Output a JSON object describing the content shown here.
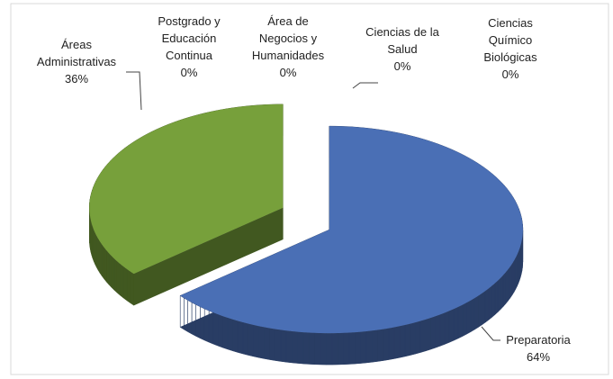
{
  "chart_data": {
    "type": "pie",
    "categories": [
      "Preparatoria",
      "Áreas Administrativas",
      "Postgrado y Educación Continua",
      "Área de Negocios y Humanidades",
      "Ciencias de la Salud",
      "Ciencias Químico Biológicas"
    ],
    "values": [
      64,
      36,
      0,
      0,
      0,
      0
    ],
    "value_labels": [
      "64%",
      "36%",
      "0%",
      "0%",
      "0%",
      "0%"
    ],
    "colors": [
      "#4a6fb5",
      "#77a03b",
      "#c0504d",
      "#8064a2",
      "#d8a100",
      "#4bacc6"
    ]
  }
}
